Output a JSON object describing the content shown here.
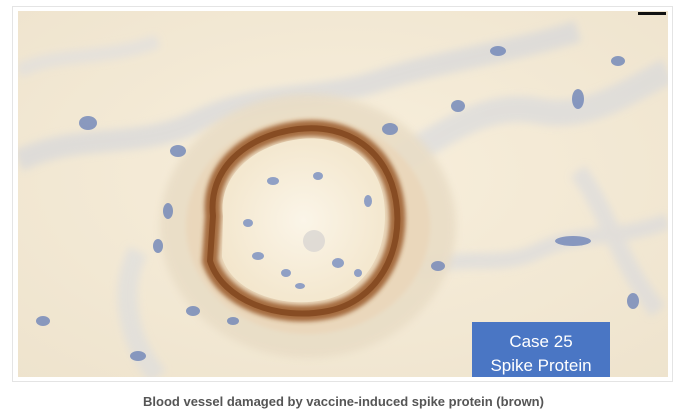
{
  "image": {
    "label_line1": "Case 25",
    "label_line2": "Spike Protein",
    "label_color": "#4a76c4",
    "stain_color": "#8a4a1e",
    "tissue_color": "#f4ead6",
    "nuclei_color": "#6f85b8"
  },
  "caption": "Blood vessel damaged by vaccine-induced spike protein (brown)"
}
